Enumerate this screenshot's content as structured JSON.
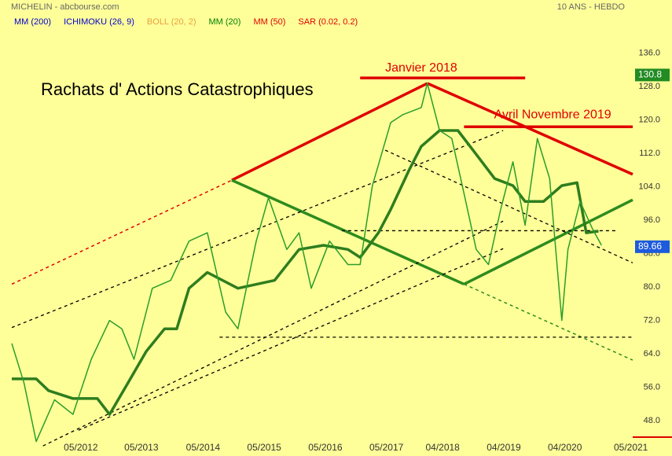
{
  "header": {
    "source": "MICHELIN - abcbourse.com",
    "period": "10 ANS - HEBDO"
  },
  "legend": [
    {
      "label": "MM (200)",
      "color": "#0000cc"
    },
    {
      "label": "ICHIMOKU (26, 9)",
      "color": "#0000cc"
    },
    {
      "label": "BOLL (20, 2)",
      "color": "#e8a040"
    },
    {
      "label": "MM (20)",
      "color": "#008000"
    },
    {
      "label": "MM (50)",
      "color": "#e00000"
    },
    {
      "label": "SAR (0.02, 0.2)",
      "color": "#e00000"
    }
  ],
  "chart_data": {
    "type": "line",
    "title": "Rachats d' Actions Catastrophiques",
    "xlim": [
      2011.2,
      2021.36
    ],
    "ylim": [
      43.3,
      145
    ],
    "xticks": [
      {
        "value": 2012.33,
        "label": "05/2012"
      },
      {
        "value": 2013.32,
        "label": "05/2013"
      },
      {
        "value": 2014.33,
        "label": "05/2014"
      },
      {
        "value": 2015.33,
        "label": "05/2015"
      },
      {
        "value": 2016.33,
        "label": "05/2016"
      },
      {
        "value": 2017.33,
        "label": "05/2017"
      },
      {
        "value": 2018.25,
        "label": "04/2018"
      },
      {
        "value": 2019.25,
        "label": "04/2019"
      },
      {
        "value": 2020.25,
        "label": "04/2020"
      },
      {
        "value": 2021.33,
        "label": "05/2021"
      }
    ],
    "yticks": [
      {
        "value": 48,
        "label": "48.0"
      },
      {
        "value": 56,
        "label": "56.0"
      },
      {
        "value": 64,
        "label": "64.0"
      },
      {
        "value": 72,
        "label": "72.0"
      },
      {
        "value": 80,
        "label": "80.0"
      },
      {
        "value": 88,
        "label": "88.0"
      },
      {
        "value": 96,
        "label": "96.0"
      },
      {
        "value": 104,
        "label": "104.0"
      },
      {
        "value": 112,
        "label": "112.0"
      },
      {
        "value": 120,
        "label": "120.0"
      },
      {
        "value": 128,
        "label": "128.0"
      },
      {
        "value": 136,
        "label": "136.0"
      }
    ],
    "price": {
      "color": "#2a9d2a",
      "x": [
        2011.2,
        2011.4,
        2011.6,
        2011.9,
        2012.2,
        2012.5,
        2012.8,
        2013.0,
        2013.2,
        2013.5,
        2013.8,
        2014.1,
        2014.4,
        2014.7,
        2014.9,
        2015.2,
        2015.4,
        2015.7,
        2015.9,
        2016.1,
        2016.4,
        2016.7,
        2016.9,
        2017.1,
        2017.4,
        2017.6,
        2017.9,
        2018.0,
        2018.2,
        2018.4,
        2018.6,
        2018.8,
        2019.0,
        2019.2,
        2019.4,
        2019.6,
        2019.8,
        2020.0,
        2020.2,
        2020.3,
        2020.5,
        2020.7,
        2020.85
      ],
      "values": [
        66.5,
        57,
        43,
        53,
        49.5,
        62.7,
        72,
        70,
        62.7,
        79.7,
        81.6,
        91,
        93,
        74,
        70,
        91,
        101.4,
        89,
        93,
        79.7,
        91,
        85.4,
        85.4,
        104.3,
        119.4,
        121.3,
        123,
        128.8,
        117.5,
        115.6,
        102.4,
        89,
        85.4,
        98.6,
        110,
        94.8,
        115.6,
        106,
        72,
        89,
        100.5,
        94,
        90
      ]
    },
    "indicator_line": {
      "color": "#2e7d1e",
      "x": [
        2011.2,
        2011.6,
        2011.8,
        2012.2,
        2012.6,
        2012.8,
        2013.1,
        2013.4,
        2013.7,
        2013.9,
        2014.1,
        2014.4,
        2014.9,
        2015.5,
        2015.9,
        2016.3,
        2016.7,
        2016.9,
        2017.2,
        2017.4,
        2017.7,
        2017.9,
        2018.2,
        2018.5,
        2018.8,
        2019.1,
        2019.4,
        2019.6,
        2019.9,
        2020.2,
        2020.45,
        2020.6,
        2020.8
      ],
      "values": [
        58,
        58,
        55.2,
        53.3,
        53.3,
        49.5,
        57,
        64.6,
        70,
        70,
        79.7,
        83.5,
        79.7,
        81.6,
        89,
        90,
        89,
        87.1,
        93,
        98.6,
        108,
        113.7,
        117.5,
        117.5,
        111.8,
        106,
        104.3,
        100.5,
        100.5,
        104.3,
        105,
        93,
        93.4
      ]
    },
    "trendlines": [
      {
        "color": "#e00000",
        "dash": false,
        "width": 3.5,
        "x": [
          2014.8,
          2018.0
        ],
        "y": [
          105.6,
          128.8
        ]
      },
      {
        "color": "#e00000",
        "dash": false,
        "width": 3.5,
        "x": [
          2018.0,
          2021.36
        ],
        "y": [
          128.8,
          107
        ]
      },
      {
        "color": "#e00000",
        "dash": true,
        "width": 1.5,
        "x": [
          2011.2,
          2014.8
        ],
        "y": [
          80.7,
          105.6
        ]
      },
      {
        "color": "#e00000",
        "dash": false,
        "width": 3.5,
        "x": [
          2016.9,
          2019.6
        ],
        "y": [
          130.1,
          130.1
        ]
      },
      {
        "color": "#e00000",
        "dash": false,
        "width": 3.5,
        "x": [
          2018.6,
          2021.36
        ],
        "y": [
          118.4,
          118.4
        ]
      },
      {
        "color": "#2e8b1e",
        "dash": false,
        "width": 3.5,
        "x": [
          2014.8,
          2018.6
        ],
        "y": [
          105.6,
          80.7
        ]
      },
      {
        "color": "#2e8b1e",
        "dash": false,
        "width": 3.5,
        "x": [
          2018.6,
          2021.36
        ],
        "y": [
          80.7,
          100.9
        ]
      },
      {
        "color": "#2e8b1e",
        "dash": true,
        "width": 1.5,
        "x": [
          2018.6,
          2021.36
        ],
        "y": [
          80.7,
          62.5
        ]
      },
      {
        "color": "#000000",
        "dash": true,
        "width": 1.3,
        "x": [
          2016.6,
          2021.1
        ],
        "y": [
          93.5,
          93.5
        ]
      },
      {
        "color": "#000000",
        "dash": true,
        "width": 1.3,
        "x": [
          2014.6,
          2021.36
        ],
        "y": [
          68,
          68
        ]
      },
      {
        "color": "#000000",
        "dash": true,
        "width": 1.3,
        "x": [
          2011.2,
          2019.24
        ],
        "y": [
          70.3,
          117.5
        ]
      },
      {
        "color": "#000000",
        "dash": true,
        "width": 1.3,
        "x": [
          2011.71,
          2019.24
        ],
        "y": [
          41.95,
          95.8
        ]
      },
      {
        "color": "#000000",
        "dash": true,
        "width": 1.3,
        "x": [
          2012.29,
          2019.24
        ],
        "y": [
          45.7,
          89.2
        ]
      },
      {
        "color": "#000000",
        "dash": true,
        "width": 1.3,
        "x": [
          2017.31,
          2021.36
        ],
        "y": [
          112.8,
          85.8
        ]
      }
    ],
    "annotations": [
      {
        "text": "Janvier 2018",
        "x": 2017.9,
        "y": 132.4
      },
      {
        "text": "Avril  Novembre 2019",
        "x": 2020.05,
        "y": 121.2
      }
    ],
    "markers": [
      {
        "value": 130.8,
        "color": "#228b22"
      },
      {
        "value": 89.66,
        "color": "#1e5adc"
      }
    ]
  }
}
